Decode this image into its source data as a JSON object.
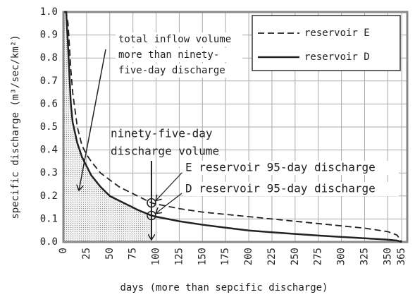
{
  "chart_data": {
    "type": "line",
    "xlabel": "days (more than sepcific discharge)",
    "ylabel": "specific discharge (m³/sec/km²)",
    "x": [
      1,
      3,
      5,
      8,
      10,
      15,
      20,
      25,
      30,
      40,
      50,
      60,
      70,
      80,
      95,
      100,
      125,
      150,
      175,
      200,
      225,
      250,
      275,
      300,
      325,
      350,
      360,
      365
    ],
    "series": [
      {
        "name": "reservoir E",
        "color": "#222222",
        "dash": true,
        "values": [
          1.0,
          1.0,
          0.95,
          0.75,
          0.65,
          0.5,
          0.42,
          0.38,
          0.35,
          0.3,
          0.27,
          0.24,
          0.22,
          0.2,
          0.17,
          0.165,
          0.145,
          0.13,
          0.12,
          0.11,
          0.1,
          0.09,
          0.08,
          0.07,
          0.06,
          0.045,
          0.03,
          0.0
        ]
      },
      {
        "name": "reservoir D",
        "color": "#222222",
        "dash": false,
        "values": [
          1.0,
          1.0,
          0.85,
          0.6,
          0.52,
          0.43,
          0.37,
          0.33,
          0.29,
          0.24,
          0.2,
          0.18,
          0.16,
          0.14,
          0.115,
          0.11,
          0.09,
          0.075,
          0.062,
          0.05,
          0.042,
          0.035,
          0.028,
          0.022,
          0.016,
          0.01,
          0.006,
          0.0
        ]
      }
    ],
    "xlim": [
      0,
      371
    ],
    "ylim": [
      0,
      1
    ],
    "xticks": [
      0,
      25,
      50,
      75,
      100,
      125,
      150,
      175,
      200,
      225,
      250,
      275,
      300,
      325,
      350,
      365
    ],
    "yticks": [
      {
        "value": 0,
        "label": "0.0"
      },
      {
        "value": 0.1,
        "label": "0.1"
      },
      {
        "value": 0.2,
        "label": "0.2"
      },
      {
        "value": 0.3,
        "label": "0.3"
      },
      {
        "value": 0.4,
        "label": "0.4"
      },
      {
        "value": 0.5,
        "label": "0.5"
      },
      {
        "value": 0.6,
        "label": "0.6"
      },
      {
        "value": 0.7,
        "label": "0.7"
      },
      {
        "value": 0.8,
        "label": "0.8"
      },
      {
        "value": 0.9,
        "label": "0.9"
      },
      {
        "value": 1,
        "label": "1.0"
      }
    ],
    "grid": true,
    "legend": "upper right",
    "highlight_index": 14,
    "annotations": {
      "inflow": [
        "total inflow volume",
        "more than ninety-",
        "five-day discharge"
      ],
      "volume": [
        "ninety-five-day",
        "discharge volume"
      ],
      "e_point": "E reservoir 95-day discharge",
      "d_point": "D reservoir 95-day discharge"
    }
  }
}
